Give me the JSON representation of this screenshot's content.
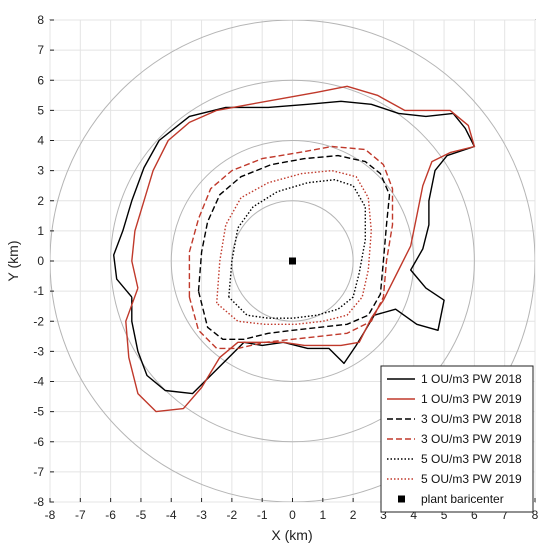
{
  "chart_data": {
    "type": "line",
    "xlabel": "X (km)",
    "ylabel": "Y (km)",
    "xlim": [
      -8,
      8
    ],
    "ylim": [
      -8,
      8
    ],
    "xticks": [
      -8,
      -7,
      -6,
      -5,
      -4,
      -3,
      -2,
      -1,
      0,
      1,
      2,
      3,
      4,
      5,
      6,
      7,
      8
    ],
    "yticks": [
      -8,
      -7,
      -6,
      -5,
      -4,
      -3,
      -2,
      -1,
      0,
      1,
      2,
      3,
      4,
      5,
      6,
      7,
      8
    ],
    "grid": true,
    "circles_radius": [
      2,
      4,
      6,
      8
    ],
    "legend_position": "bottom-right",
    "series": [
      {
        "name": "1 OU/m3 PW 2018",
        "color": "#000000",
        "dash": "solid",
        "points": [
          [
            -5.3,
            -1.2
          ],
          [
            -5.8,
            -0.6
          ],
          [
            -5.9,
            0.2
          ],
          [
            -5.6,
            1.0
          ],
          [
            -5.3,
            2.0
          ],
          [
            -4.9,
            3.1
          ],
          [
            -4.4,
            4.0
          ],
          [
            -3.4,
            4.8
          ],
          [
            -2.2,
            5.1
          ],
          [
            -0.8,
            5.1
          ],
          [
            0.5,
            5.2
          ],
          [
            1.6,
            5.3
          ],
          [
            2.6,
            5.2
          ],
          [
            3.5,
            4.9
          ],
          [
            4.4,
            4.8
          ],
          [
            5.3,
            4.9
          ],
          [
            5.7,
            4.4
          ],
          [
            6.0,
            3.8
          ],
          [
            5.1,
            3.5
          ],
          [
            4.7,
            3.0
          ],
          [
            4.5,
            2.0
          ],
          [
            4.5,
            1.2
          ],
          [
            4.3,
            0.4
          ],
          [
            3.9,
            -0.3
          ],
          [
            4.4,
            -0.9
          ],
          [
            5.0,
            -1.3
          ],
          [
            4.8,
            -2.3
          ],
          [
            4.1,
            -2.1
          ],
          [
            3.4,
            -1.6
          ],
          [
            2.7,
            -1.8
          ],
          [
            2.4,
            -2.3
          ],
          [
            2.1,
            -2.8
          ],
          [
            1.7,
            -3.4
          ],
          [
            1.2,
            -2.9
          ],
          [
            0.5,
            -2.9
          ],
          [
            -0.3,
            -2.7
          ],
          [
            -1.0,
            -2.8
          ],
          [
            -1.6,
            -2.7
          ],
          [
            -2.0,
            -3.1
          ],
          [
            -2.7,
            -3.8
          ],
          [
            -3.3,
            -4.4
          ],
          [
            -4.2,
            -4.3
          ],
          [
            -4.8,
            -3.8
          ],
          [
            -5.1,
            -3.0
          ],
          [
            -5.3,
            -2.0
          ],
          [
            -5.3,
            -1.2
          ]
        ]
      },
      {
        "name": "1 OU/m3 PW 2019",
        "color": "#c0392b",
        "dash": "solid",
        "points": [
          [
            -5.1,
            -0.9
          ],
          [
            -5.3,
            0.0
          ],
          [
            -5.2,
            1.0
          ],
          [
            -4.9,
            2.0
          ],
          [
            -4.6,
            3.0
          ],
          [
            -4.1,
            4.0
          ],
          [
            -3.4,
            4.6
          ],
          [
            -2.5,
            5.0
          ],
          [
            -1.4,
            5.2
          ],
          [
            -0.3,
            5.4
          ],
          [
            0.8,
            5.6
          ],
          [
            1.8,
            5.8
          ],
          [
            2.8,
            5.5
          ],
          [
            3.7,
            5.0
          ],
          [
            4.4,
            5.0
          ],
          [
            5.2,
            5.0
          ],
          [
            5.8,
            4.5
          ],
          [
            6.0,
            3.8
          ],
          [
            5.2,
            3.6
          ],
          [
            4.6,
            3.3
          ],
          [
            4.3,
            2.5
          ],
          [
            4.1,
            1.5
          ],
          [
            3.9,
            0.5
          ],
          [
            3.5,
            -0.3
          ],
          [
            3.0,
            -1.3
          ],
          [
            2.6,
            -1.9
          ],
          [
            2.2,
            -2.7
          ],
          [
            1.6,
            -2.8
          ],
          [
            1.0,
            -2.8
          ],
          [
            0.4,
            -2.8
          ],
          [
            -0.3,
            -2.7
          ],
          [
            -1.0,
            -2.7
          ],
          [
            -1.8,
            -2.7
          ],
          [
            -2.4,
            -3.2
          ],
          [
            -3.0,
            -4.2
          ],
          [
            -3.6,
            -4.9
          ],
          [
            -4.5,
            -5.0
          ],
          [
            -5.1,
            -4.4
          ],
          [
            -5.4,
            -3.2
          ],
          [
            -5.5,
            -2.0
          ],
          [
            -5.1,
            -0.9
          ]
        ]
      },
      {
        "name": "3 OU/m3 PW 2018",
        "color": "#000000",
        "dash": "dashed",
        "points": [
          [
            -3.1,
            -1.0
          ],
          [
            -3.0,
            0.3
          ],
          [
            -2.8,
            1.3
          ],
          [
            -2.4,
            2.2
          ],
          [
            -1.7,
            2.8
          ],
          [
            -0.7,
            3.2
          ],
          [
            0.4,
            3.4
          ],
          [
            1.5,
            3.5
          ],
          [
            2.4,
            3.3
          ],
          [
            2.9,
            2.9
          ],
          [
            3.2,
            2.2
          ],
          [
            3.1,
            1.2
          ],
          [
            3.0,
            0.0
          ],
          [
            2.9,
            -1.1
          ],
          [
            2.5,
            -1.8
          ],
          [
            1.8,
            -2.1
          ],
          [
            0.9,
            -2.2
          ],
          [
            0.0,
            -2.3
          ],
          [
            -0.8,
            -2.4
          ],
          [
            -1.6,
            -2.6
          ],
          [
            -2.3,
            -2.6
          ],
          [
            -2.8,
            -2.2
          ],
          [
            -3.1,
            -1.0
          ]
        ]
      },
      {
        "name": "3 OU/m3 PW 2019",
        "color": "#c0392b",
        "dash": "dashed",
        "points": [
          [
            -3.4,
            -1.2
          ],
          [
            -3.4,
            0.3
          ],
          [
            -3.1,
            1.4
          ],
          [
            -2.7,
            2.4
          ],
          [
            -2.0,
            3.0
          ],
          [
            -1.0,
            3.4
          ],
          [
            0.2,
            3.6
          ],
          [
            1.3,
            3.8
          ],
          [
            2.4,
            3.7
          ],
          [
            3.0,
            3.2
          ],
          [
            3.3,
            2.4
          ],
          [
            3.3,
            1.2
          ],
          [
            3.1,
            0.0
          ],
          [
            3.0,
            -1.2
          ],
          [
            2.6,
            -2.0
          ],
          [
            1.8,
            -2.4
          ],
          [
            0.9,
            -2.5
          ],
          [
            0.0,
            -2.6
          ],
          [
            -0.9,
            -2.7
          ],
          [
            -1.8,
            -2.9
          ],
          [
            -2.5,
            -2.9
          ],
          [
            -3.1,
            -2.3
          ],
          [
            -3.4,
            -1.2
          ]
        ]
      },
      {
        "name": "5 OU/m3 PW 2018",
        "color": "#000000",
        "dash": "dotted",
        "points": [
          [
            -2.1,
            -1.2
          ],
          [
            -2.0,
            0.0
          ],
          [
            -1.8,
            1.1
          ],
          [
            -1.3,
            1.8
          ],
          [
            -0.5,
            2.3
          ],
          [
            0.5,
            2.6
          ],
          [
            1.4,
            2.7
          ],
          [
            2.0,
            2.5
          ],
          [
            2.4,
            1.8
          ],
          [
            2.4,
            0.7
          ],
          [
            2.2,
            -0.4
          ],
          [
            2.0,
            -1.2
          ],
          [
            1.5,
            -1.6
          ],
          [
            0.8,
            -1.8
          ],
          [
            0.0,
            -1.9
          ],
          [
            -0.8,
            -1.9
          ],
          [
            -1.5,
            -1.8
          ],
          [
            -2.1,
            -1.2
          ]
        ]
      },
      {
        "name": "5 OU/m3 PW 2019",
        "color": "#c0392b",
        "dash": "dotted",
        "points": [
          [
            -2.5,
            -1.4
          ],
          [
            -2.4,
            0.0
          ],
          [
            -2.2,
            1.2
          ],
          [
            -1.7,
            2.1
          ],
          [
            -0.8,
            2.6
          ],
          [
            0.3,
            2.9
          ],
          [
            1.3,
            3.0
          ],
          [
            2.1,
            2.8
          ],
          [
            2.5,
            2.1
          ],
          [
            2.6,
            1.0
          ],
          [
            2.5,
            -0.3
          ],
          [
            2.3,
            -1.2
          ],
          [
            1.8,
            -1.8
          ],
          [
            1.0,
            -2.0
          ],
          [
            0.1,
            -2.1
          ],
          [
            -0.9,
            -2.1
          ],
          [
            -1.8,
            -2.0
          ],
          [
            -2.5,
            -1.4
          ]
        ]
      }
    ],
    "marker": {
      "name": "plant baricenter",
      "x": 0,
      "y": 0,
      "color": "#000000"
    }
  }
}
